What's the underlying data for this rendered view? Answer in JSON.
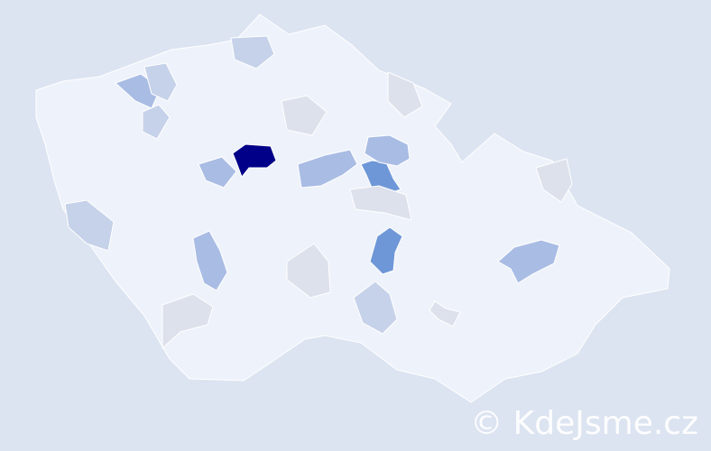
{
  "watermark": "© KdeJsme.cz",
  "colors": {
    "background": "#dce4f1",
    "base": "#eef2fa",
    "border": "#ffffff",
    "gray": "#dde1ec",
    "light": "#c6d2e9",
    "mid": "#a9bce4",
    "strong": "#6e97d8",
    "max": "#000088"
  },
  "regions": [
    {
      "level": "max"
    },
    {
      "level": "strong"
    },
    {
      "level": "strong"
    },
    {
      "level": "mid"
    },
    {
      "level": "mid"
    },
    {
      "level": "mid"
    },
    {
      "level": "mid"
    },
    {
      "level": "mid"
    },
    {
      "level": "mid"
    },
    {
      "level": "light"
    },
    {
      "level": "light"
    },
    {
      "level": "light"
    },
    {
      "level": "light"
    },
    {
      "level": "light"
    },
    {
      "level": "gray"
    },
    {
      "level": "gray"
    },
    {
      "level": "gray"
    },
    {
      "level": "gray"
    },
    {
      "level": "gray"
    },
    {
      "level": "gray"
    },
    {
      "level": "gray"
    }
  ]
}
